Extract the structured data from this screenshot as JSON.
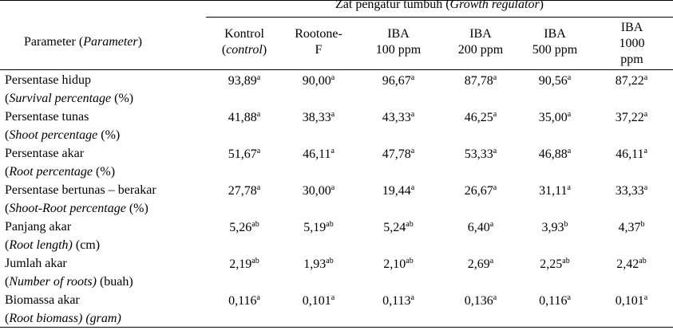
{
  "header": {
    "group_prefix": "Zat pengatur tumbuh (",
    "group_italic": "Growth regulator",
    "group_suffix": ")",
    "param_prefix": "Parameter (",
    "param_italic": "Parameter",
    "param_suffix": ")",
    "columns": [
      {
        "line1": "Kontrol",
        "line2_pre": "(",
        "line2_italic": "control",
        "line2_post": ")"
      },
      {
        "line1": "Rootone-",
        "line2": "F"
      },
      {
        "line1": "IBA",
        "line2": "100 ppm"
      },
      {
        "line1": "IBA",
        "line2": "200 ppm"
      },
      {
        "line1": "IBA",
        "line2": "500 ppm"
      },
      {
        "line1": "IBA",
        "line2": "1000",
        "line3": "ppm"
      }
    ]
  },
  "rows": [
    {
      "name": "Persentase hidup",
      "sub_italic": "Survival percentage",
      "sub_post": " (%)",
      "values": [
        {
          "v": "93,89",
          "s": "a"
        },
        {
          "v": "90,00",
          "s": "a"
        },
        {
          "v": "96,67",
          "s": "a"
        },
        {
          "v": "87,78",
          "s": "a"
        },
        {
          "v": "90,56",
          "s": "a"
        },
        {
          "v": "87,22",
          "s": "a"
        }
      ]
    },
    {
      "name": "Persentase tunas",
      "sub_italic": "Shoot percentage",
      "sub_post": " (%)",
      "values": [
        {
          "v": "41,88",
          "s": "a"
        },
        {
          "v": "38,33",
          "s": "a"
        },
        {
          "v": "43,33",
          "s": "a"
        },
        {
          "v": "46,25",
          "s": "a"
        },
        {
          "v": "35,00",
          "s": "a"
        },
        {
          "v": "37,22",
          "s": "a"
        }
      ]
    },
    {
      "name": "Persentase akar",
      "sub_italic": "Root percentage",
      "sub_post": " (%)",
      "values": [
        {
          "v": "51,67",
          "s": "a"
        },
        {
          "v": "46,11",
          "s": "a"
        },
        {
          "v": "47,78",
          "s": "a"
        },
        {
          "v": "53,33",
          "s": "a"
        },
        {
          "v": "46,88",
          "s": "a"
        },
        {
          "v": "46,11",
          "s": "a"
        }
      ]
    },
    {
      "name": "Persentase bertunas – berakar",
      "sub_italic": "Shoot-Root percentage",
      "sub_post": " (%)",
      "values": [
        {
          "v": "27,78",
          "s": "a"
        },
        {
          "v": "30,00",
          "s": "a"
        },
        {
          "v": "19,44",
          "s": "a"
        },
        {
          "v": "26,67",
          "s": "a"
        },
        {
          "v": "31,11",
          "s": "a"
        },
        {
          "v": "33,33",
          "s": "a"
        }
      ]
    },
    {
      "name": "Panjang akar",
      "sub_italic": "Root length)",
      "sub_post": " (cm)",
      "values": [
        {
          "v": "5,26",
          "s": "ab"
        },
        {
          "v": "5,19",
          "s": "ab"
        },
        {
          "v": "5,24",
          "s": "ab"
        },
        {
          "v": "6,40",
          "s": "a"
        },
        {
          "v": "3,93",
          "s": "b"
        },
        {
          "v": "4,37",
          "s": "b"
        }
      ]
    },
    {
      "name": "Jumlah akar",
      "sub_italic": "Number of roots)",
      "sub_post": " (buah)",
      "values": [
        {
          "v": "2,19",
          "s": "ab"
        },
        {
          "v": "1,93",
          "s": "ab"
        },
        {
          "v": "2,10",
          "s": "ab"
        },
        {
          "v": "2,69",
          "s": "a"
        },
        {
          "v": "2,25",
          "s": "ab"
        },
        {
          "v": "2,42",
          "s": "ab"
        }
      ]
    },
    {
      "name": "Biomassa akar",
      "sub_italic": "Root biomass) (gram)",
      "sub_post": "",
      "values": [
        {
          "v": "0,116",
          "s": "a"
        },
        {
          "v": "0,101",
          "s": "a"
        },
        {
          "v": "0,113",
          "s": "a"
        },
        {
          "v": "0,136",
          "s": "a"
        },
        {
          "v": "0,116",
          "s": "a"
        },
        {
          "v": "0,101",
          "s": "a"
        }
      ]
    }
  ]
}
